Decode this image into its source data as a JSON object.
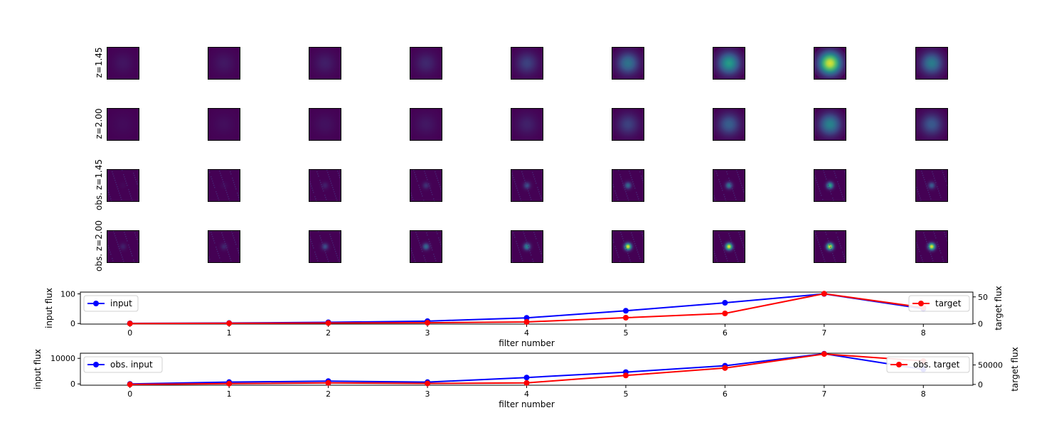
{
  "image_grid": {
    "rows": [
      {
        "label": "z=1.45",
        "peaks": [
          0.06,
          0.07,
          0.09,
          0.12,
          0.2,
          0.38,
          0.55,
          0.95,
          0.42
        ],
        "kind": "model"
      },
      {
        "label": "z=2.00",
        "peaks": [
          0.03,
          0.04,
          0.05,
          0.07,
          0.1,
          0.2,
          0.3,
          0.45,
          0.28
        ],
        "kind": "model"
      },
      {
        "label": "obs. z=1.45",
        "peaks": [
          0.02,
          0.03,
          0.1,
          0.15,
          0.25,
          0.35,
          0.4,
          0.6,
          0.3
        ],
        "kind": "obs"
      },
      {
        "label": "obs. z=2.00",
        "peaks": [
          0.1,
          0.12,
          0.25,
          0.35,
          0.45,
          1.0,
          1.0,
          1.0,
          1.0
        ],
        "kind": "obs"
      }
    ],
    "colormap": "viridis"
  },
  "chart_data": [
    {
      "type": "line",
      "x": [
        0,
        1,
        2,
        3,
        4,
        5,
        6,
        7,
        8
      ],
      "xlabel": "filter number",
      "ylabel_left": "input flux",
      "ylabel_right": "target flux",
      "ylim_left": [
        -2,
        106
      ],
      "ylim_right": [
        -1,
        59
      ],
      "yticks_left": [
        "0",
        "100"
      ],
      "yticks_right": [
        "0",
        "50"
      ],
      "series": [
        {
          "name": "input",
          "axis": "left",
          "color": "#0000ff",
          "values": [
            0.5,
            1.5,
            4,
            8,
            19,
            43,
            70,
            100,
            50
          ]
        },
        {
          "name": "target",
          "axis": "right",
          "color": "#ff0000",
          "values": [
            0,
            0.5,
            1,
            1.5,
            3,
            11,
            19,
            56,
            30
          ]
        }
      ],
      "legend_left": "upper left",
      "legend_right": "upper right"
    },
    {
      "type": "line",
      "x": [
        0,
        1,
        2,
        3,
        4,
        5,
        6,
        7,
        8
      ],
      "xlabel": "filter number",
      "ylabel_left": "input flux",
      "ylabel_right": "target flux",
      "ylim_left": [
        -500,
        12000
      ],
      "ylim_right": [
        -2000,
        80000
      ],
      "yticks_left": [
        "0",
        "10000"
      ],
      "yticks_right": [
        "0",
        "50000"
      ],
      "series": [
        {
          "name": "obs. input",
          "axis": "left",
          "color": "#0000ff",
          "values": [
            0,
            700,
            1100,
            700,
            2500,
            4600,
            7100,
            11800,
            5700
          ]
        },
        {
          "name": "obs. target",
          "axis": "right",
          "color": "#ff0000",
          "values": [
            0,
            2000,
            4000,
            2500,
            4000,
            23000,
            42000,
            78000,
            60000
          ]
        }
      ],
      "legend_left": "upper left",
      "legend_right": "upper right"
    }
  ],
  "xticks": [
    "0",
    "1",
    "2",
    "3",
    "4",
    "5",
    "6",
    "7",
    "8"
  ]
}
